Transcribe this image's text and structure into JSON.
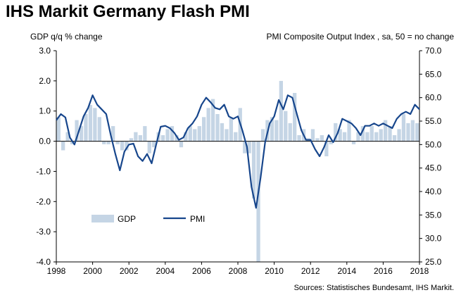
{
  "title": "IHS Markit Germany Flash PMI",
  "source": "Sources: Statistisches Bundesamt, IHS Markit.",
  "colors": {
    "gdp": "#c5d5e5",
    "pmi": "#17468c",
    "axis": "#000000"
  },
  "chart_data": {
    "type": "bar+line",
    "title": "IHS Markit Germany Flash PMI",
    "y_left_label": "GDP q/q % change",
    "y_right_label": "PMI Composite  Output Index , sa, 50 = no change",
    "y_left_range": [
      -4.0,
      3.0
    ],
    "y_right_range": [
      25.0,
      70.0
    ],
    "y_left_ticks": [
      "3.0",
      "2.0",
      "1.0",
      "0.0",
      "-1.0",
      "-2.0",
      "-3.0",
      "-4.0"
    ],
    "y_right_ticks": [
      "70.0",
      "65.0",
      "60.0",
      "55.0",
      "50.0",
      "45.0",
      "40.0",
      "35.0",
      "30.0",
      "25.0"
    ],
    "x_range": [
      1998,
      2018
    ],
    "x_ticks": [
      "1998",
      "2000",
      "2002",
      "2004",
      "2006",
      "2008",
      "2010",
      "2012",
      "2014",
      "2016",
      "2018"
    ],
    "legend": {
      "position": "lower-left",
      "items": [
        "GDP",
        "PMI"
      ]
    },
    "series": [
      {
        "name": "GDP",
        "axis": "left",
        "kind": "bar",
        "x": [
          1998.0,
          1998.25,
          1998.5,
          1998.75,
          1999.0,
          1999.25,
          1999.5,
          1999.75,
          2000.0,
          2000.25,
          2000.5,
          2000.75,
          2001.0,
          2001.25,
          2001.5,
          2001.75,
          2002.0,
          2002.25,
          2002.5,
          2002.75,
          2003.0,
          2003.25,
          2003.5,
          2003.75,
          2004.0,
          2004.25,
          2004.5,
          2004.75,
          2005.0,
          2005.25,
          2005.5,
          2005.75,
          2006.0,
          2006.25,
          2006.5,
          2006.75,
          2007.0,
          2007.25,
          2007.5,
          2007.75,
          2008.0,
          2008.25,
          2008.5,
          2008.75,
          2009.0,
          2009.25,
          2009.5,
          2009.75,
          2010.0,
          2010.25,
          2010.5,
          2010.75,
          2011.0,
          2011.25,
          2011.5,
          2011.75,
          2012.0,
          2012.25,
          2012.5,
          2012.75,
          2013.0,
          2013.25,
          2013.5,
          2013.75,
          2014.0,
          2014.25,
          2014.5,
          2014.75,
          2015.0,
          2015.25,
          2015.5,
          2015.75,
          2016.0,
          2016.25,
          2016.5,
          2016.75,
          2017.0,
          2017.25,
          2017.5,
          2017.75
        ],
        "values": [
          0.8,
          -0.3,
          0.3,
          -0.1,
          0.7,
          0.5,
          0.9,
          1.2,
          1.1,
          0.8,
          -0.1,
          -0.1,
          0.5,
          -0.1,
          -0.3,
          -0.3,
          0.1,
          0.3,
          0.2,
          0.5,
          -0.4,
          -0.2,
          0.3,
          0.2,
          0.4,
          0.5,
          0.2,
          -0.2,
          0.3,
          0.5,
          0.4,
          0.5,
          0.8,
          1.1,
          1.4,
          0.9,
          0.6,
          0.4,
          0.8,
          0.3,
          1.1,
          -0.4,
          -0.4,
          -1.9,
          -4.0,
          0.4,
          0.7,
          0.8,
          0.7,
          2.0,
          1.0,
          0.6,
          1.6,
          0.2,
          0.4,
          0.1,
          0.4,
          0.1,
          0.2,
          -0.5,
          -0.1,
          0.6,
          0.4,
          0.3,
          0.7,
          -0.1,
          0.3,
          0.5,
          0.3,
          0.5,
          0.3,
          0.4,
          0.7,
          0.5,
          0.2,
          0.4,
          0.9,
          0.6,
          0.7,
          0.6
        ]
      },
      {
        "name": "PMI",
        "axis": "right",
        "kind": "line",
        "x": [
          1998.0,
          1998.25,
          1998.5,
          1998.75,
          1999.0,
          1999.25,
          1999.5,
          1999.75,
          2000.0,
          2000.25,
          2000.5,
          2000.75,
          2001.0,
          2001.25,
          2001.5,
          2001.75,
          2002.0,
          2002.25,
          2002.5,
          2002.75,
          2003.0,
          2003.25,
          2003.5,
          2003.75,
          2004.0,
          2004.25,
          2004.5,
          2004.75,
          2005.0,
          2005.25,
          2005.5,
          2005.75,
          2006.0,
          2006.25,
          2006.5,
          2006.75,
          2007.0,
          2007.25,
          2007.5,
          2007.75,
          2008.0,
          2008.25,
          2008.5,
          2008.75,
          2009.0,
          2009.25,
          2009.5,
          2009.75,
          2010.0,
          2010.25,
          2010.5,
          2010.75,
          2011.0,
          2011.25,
          2011.5,
          2011.75,
          2012.0,
          2012.25,
          2012.5,
          2012.75,
          2013.0,
          2013.25,
          2013.5,
          2013.75,
          2014.0,
          2014.25,
          2014.5,
          2014.75,
          2015.0,
          2015.25,
          2015.5,
          2015.75,
          2016.0,
          2016.25,
          2016.5,
          2016.75,
          2017.0,
          2017.25,
          2017.5,
          2017.75,
          2018.0
        ],
        "values": [
          55.2,
          56.5,
          55.8,
          51.5,
          50.0,
          53.0,
          56.0,
          57.8,
          60.5,
          58.5,
          57.5,
          56.5,
          52.0,
          48.0,
          44.5,
          48.5,
          50.0,
          50.2,
          47.5,
          46.5,
          48.0,
          46.0,
          50.0,
          53.8,
          54.0,
          53.5,
          52.5,
          51.0,
          51.5,
          53.5,
          54.5,
          56.0,
          58.5,
          60.0,
          59.0,
          57.8,
          57.5,
          58.5,
          56.0,
          55.5,
          56.0,
          53.0,
          49.5,
          41.0,
          36.5,
          43.0,
          50.5,
          54.5,
          56.0,
          59.5,
          57.5,
          60.5,
          60.0,
          56.5,
          53.0,
          51.0,
          51.0,
          49.0,
          47.5,
          49.5,
          52.0,
          50.5,
          52.5,
          55.5,
          55.0,
          54.5,
          53.5,
          52.0,
          54.0,
          54.0,
          54.5,
          54.0,
          54.5,
          54.0,
          53.5,
          55.5,
          56.5,
          57.0,
          56.5,
          58.5,
          57.5
        ]
      }
    ]
  }
}
